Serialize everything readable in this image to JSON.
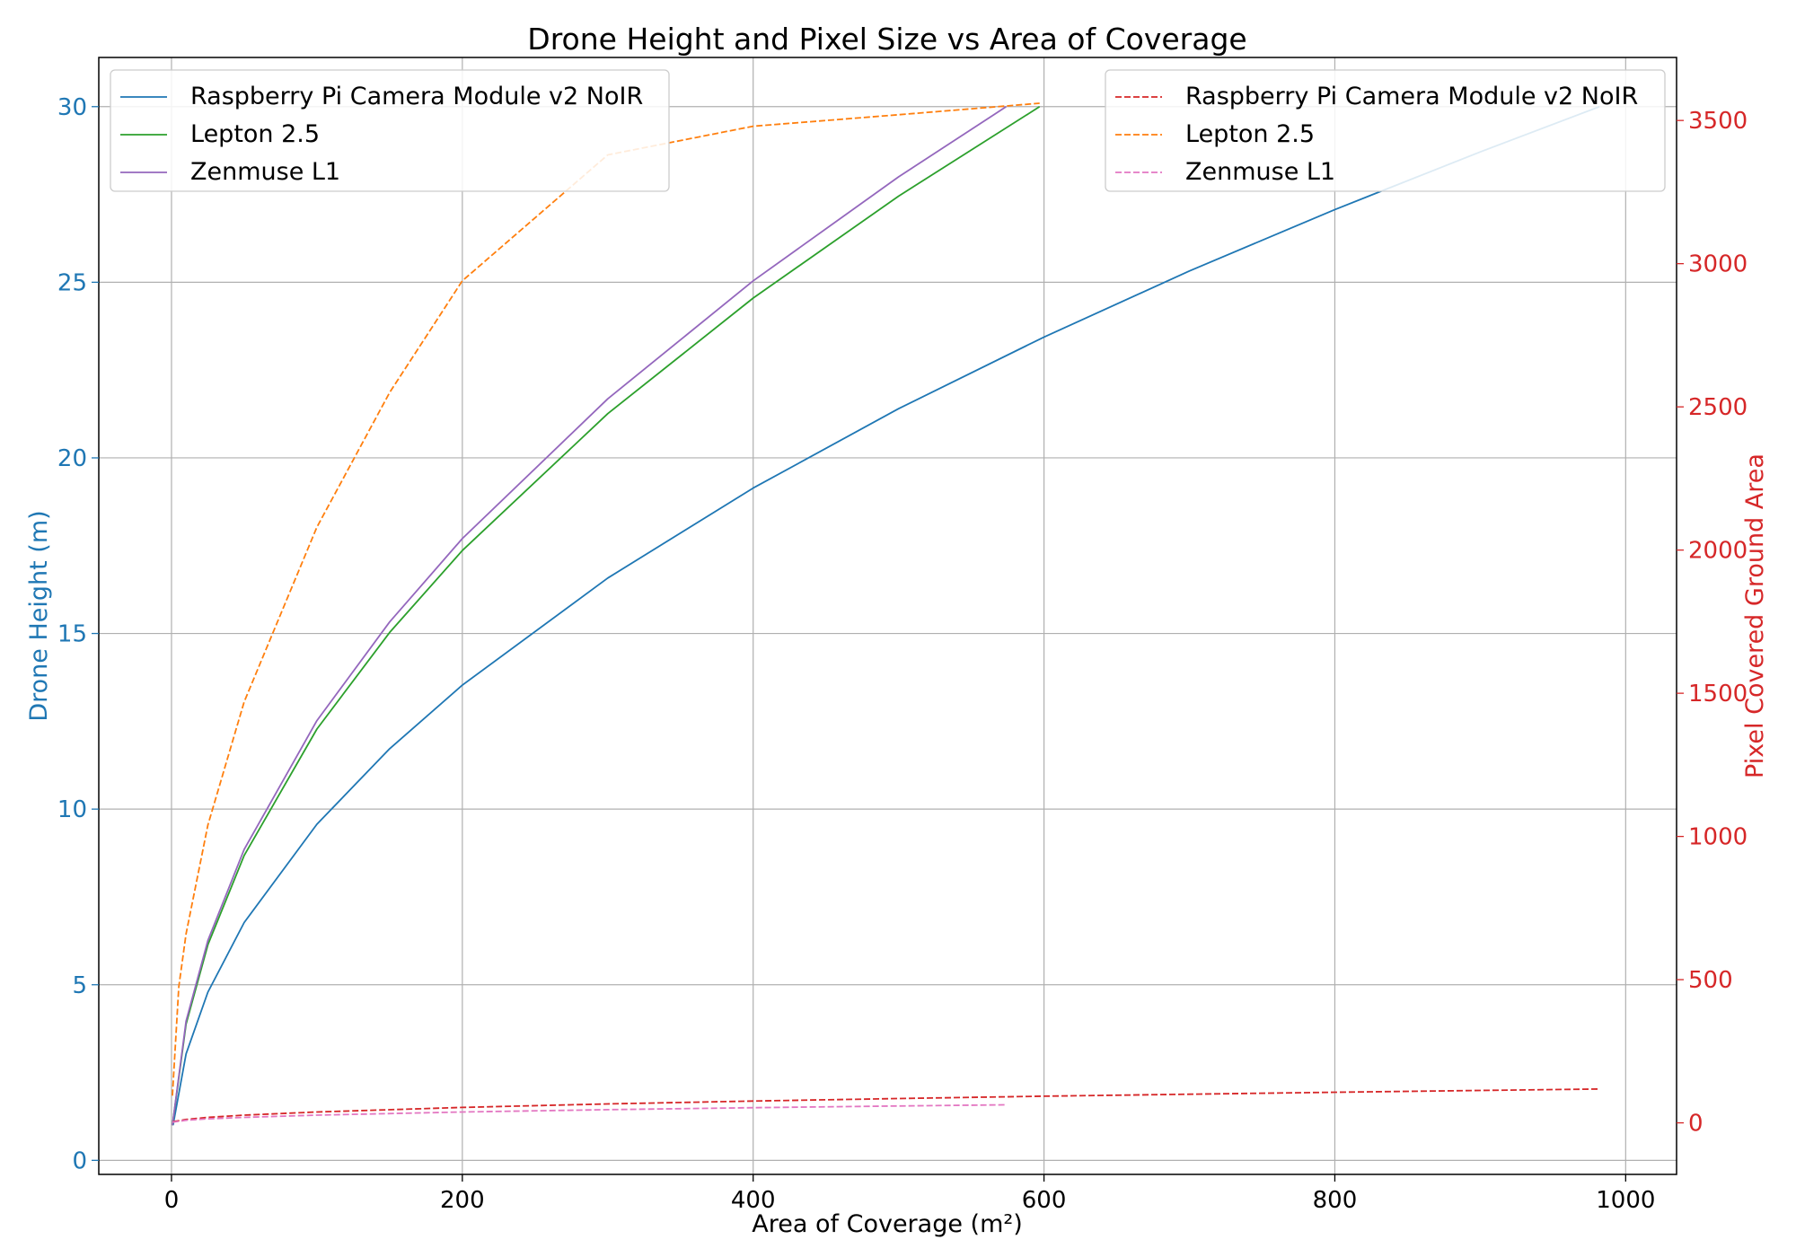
{
  "chart_data": {
    "type": "line",
    "title": "Drone Height and Pixel Size vs Area of Coverage",
    "xlabel": "Area of Coverage (m²)",
    "ylabel_left": "Drone Height (m)",
    "ylabel_right": "Pixel Covered Ground Area",
    "xlim": [
      -50,
      1035
    ],
    "ylim_left": [
      -0.4,
      31.4
    ],
    "ylim_right": [
      -180,
      3720
    ],
    "xticks": [
      0,
      200,
      400,
      600,
      800,
      1000
    ],
    "yticks_left": [
      0,
      5,
      10,
      15,
      20,
      25,
      30
    ],
    "yticks_right": [
      0,
      500,
      1000,
      1500,
      2000,
      2500,
      3000,
      3500
    ],
    "grid": true,
    "colors": {
      "left_axis": "#1f77b4",
      "right_axis": "#d62728"
    },
    "legend_left": {
      "placement": "top-left",
      "entries": [
        "Raspberry Pi Camera Module v2 NoIR",
        "Lepton 2.5",
        "Zenmuse L1"
      ]
    },
    "legend_right": {
      "placement": "top-right",
      "entries": [
        "Raspberry Pi Camera Module v2 NoIR",
        "Lepton 2.5",
        "Zenmuse L1"
      ]
    },
    "series": [
      {
        "name": "Raspberry Pi Camera Module v2 NoIR",
        "axis": "left",
        "style": "solid",
        "color": "#1f77b4",
        "x": [
          1.09,
          10,
          25,
          50,
          100,
          150,
          200,
          300,
          400,
          500,
          600,
          700,
          800,
          900,
          982
        ],
        "y": [
          1,
          3.03,
          4.79,
          6.77,
          9.57,
          11.72,
          13.53,
          16.58,
          19.14,
          21.4,
          23.44,
          25.32,
          27.07,
          28.71,
          30
        ]
      },
      {
        "name": "Lepton 2.5",
        "axis": "left",
        "style": "solid",
        "color": "#2ca02c",
        "x": [
          0.66,
          10,
          25,
          50,
          100,
          150,
          200,
          300,
          400,
          500,
          597
        ],
        "y": [
          1,
          3.88,
          6.14,
          8.68,
          12.28,
          15.03,
          17.36,
          21.26,
          24.55,
          27.45,
          30
        ]
      },
      {
        "name": "Zenmuse L1",
        "axis": "left",
        "style": "solid",
        "color": "#9467bd",
        "x": [
          0.64,
          10,
          25,
          50,
          100,
          150,
          200,
          300,
          400,
          500,
          574
        ],
        "y": [
          1,
          3.96,
          6.26,
          8.85,
          12.52,
          15.33,
          17.7,
          21.68,
          25.04,
          28.0,
          30
        ]
      },
      {
        "name": "Raspberry Pi Camera Module v2 NoIR",
        "axis": "right",
        "style": "dashed",
        "color": "#d62728",
        "x": [
          1.09,
          10,
          25,
          50,
          100,
          200,
          300,
          400,
          500,
          600,
          700,
          800,
          900,
          982
        ],
        "y": [
          4,
          12,
          19,
          27,
          38,
          54,
          66,
          76,
          85,
          93,
          100,
          107,
          113,
          118
        ]
      },
      {
        "name": "Lepton 2.5",
        "axis": "right",
        "style": "dashed",
        "color": "#ff7f0e",
        "x": [
          0.66,
          5,
          10,
          25,
          50,
          100,
          150,
          200,
          300,
          400,
          500,
          597
        ],
        "y": [
          95,
          475,
          660,
          1040,
          1470,
          2080,
          2550,
          2940,
          3380,
          3480,
          3520,
          3560
        ]
      },
      {
        "name": "Zenmuse L1",
        "axis": "right",
        "style": "dashed",
        "color": "#e377c2",
        "x": [
          0.64,
          10,
          25,
          50,
          100,
          200,
          300,
          400,
          500,
          574
        ],
        "y": [
          2,
          9,
          14,
          19,
          27,
          38,
          46,
          53,
          59,
          63
        ]
      }
    ]
  }
}
